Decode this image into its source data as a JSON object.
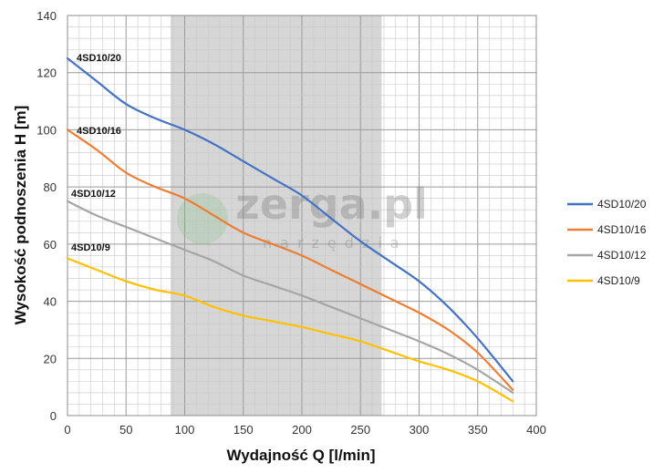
{
  "chart_data": {
    "type": "line",
    "xlabel": "Wydajność Q [l/min]",
    "ylabel": "Wysokość podnoszenia H [m]",
    "xlim": [
      0,
      400
    ],
    "ylim": [
      0,
      140
    ],
    "xticks": [
      "0",
      "50",
      "100",
      "150",
      "200",
      "250",
      "300",
      "350",
      "400"
    ],
    "yticks": [
      "0",
      "20",
      "40",
      "60",
      "80",
      "100",
      "120",
      "140"
    ],
    "grid": true,
    "legend_position": "right",
    "shaded_region": [
      88,
      268
    ],
    "series": [
      {
        "name": "4SD10/20",
        "color": "#4472C4",
        "x": [
          0,
          25,
          50,
          75,
          100,
          125,
          150,
          175,
          200,
          225,
          250,
          275,
          300,
          325,
          350,
          380
        ],
        "y": [
          125,
          117,
          109,
          104,
          100,
          95,
          89,
          83,
          77,
          69,
          61,
          54,
          47,
          38,
          27,
          12
        ]
      },
      {
        "name": "4SD10/16",
        "color": "#ED7D31",
        "x": [
          0,
          25,
          50,
          75,
          100,
          125,
          150,
          175,
          200,
          225,
          250,
          275,
          300,
          325,
          350,
          380
        ],
        "y": [
          100,
          93,
          85,
          80,
          76,
          70,
          64,
          60,
          56,
          51,
          46,
          41,
          36,
          30,
          22,
          9
        ]
      },
      {
        "name": "4SD10/12",
        "color": "#A5A5A5",
        "x": [
          0,
          25,
          50,
          75,
          100,
          125,
          150,
          175,
          200,
          225,
          250,
          275,
          300,
          325,
          350,
          380
        ],
        "y": [
          75,
          70,
          66,
          62,
          58,
          54,
          49,
          45.5,
          42,
          38,
          34,
          30,
          26,
          21.5,
          16,
          8
        ]
      },
      {
        "name": "4SD10/9",
        "color": "#FFC000",
        "x": [
          0,
          25,
          50,
          75,
          100,
          125,
          150,
          175,
          200,
          225,
          250,
          275,
          300,
          325,
          350,
          380
        ],
        "y": [
          55,
          51,
          47,
          44,
          42,
          38,
          35,
          33,
          31,
          28.5,
          26,
          22.5,
          19,
          16,
          12,
          5
        ]
      }
    ],
    "annotations": [
      "4SD10/20",
      "4SD10/16",
      "4SD10/12",
      "4SD10/9"
    ],
    "watermark": {
      "main": "zerga.pl",
      "sub": "narzędzia"
    }
  }
}
